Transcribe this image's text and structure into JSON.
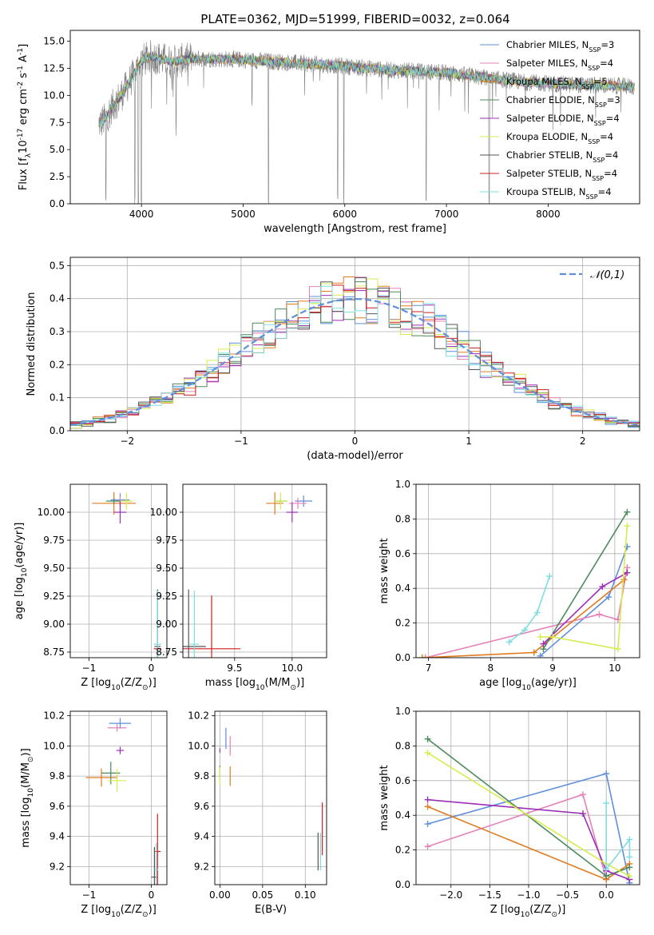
{
  "title": "PLATE=0362, MJD=51999, FIBERID=0032, z=0.064",
  "models": [
    {
      "name": "Chabrier MILES, N$_{SSP}$=3",
      "color": "#5f8edb"
    },
    {
      "name": "Salpeter MILES, N$_{SSP}$=4",
      "color": "#e581b9"
    },
    {
      "name": "Kroupa MILES, N$_{SSP}$=5",
      "color": "#e07b1e"
    },
    {
      "name": "Chabrier ELODIE, N$_{SSP}$=3",
      "color": "#4c8a5c"
    },
    {
      "name": "Salpeter ELODIE, N$_{SSP}$=4",
      "color": "#9a2fb8"
    },
    {
      "name": "Kroupa ELODIE, N$_{SSP}$=4",
      "color": "#d6ec4d"
    },
    {
      "name": "Chabrier STELIB, N$_{SSP}$=4",
      "color": "#555555"
    },
    {
      "name": "Salpeter STELIB, N$_{SSP}$=4",
      "color": "#cc1f1f"
    },
    {
      "name": "Kroupa STELIB, N$_{SSP}$=4",
      "color": "#7fdde0"
    }
  ],
  "chart_data": [
    {
      "id": "spectrum",
      "type": "line",
      "xlabel": "wavelength [Angstrom, rest frame]",
      "ylabel": "Flux [f$_\\lambda$10$^{-17}$ erg cm$^{-2}$ s$^{-1}$ A$^{-1}$]",
      "xlim": [
        3300,
        8900
      ],
      "ylim": [
        0,
        16
      ],
      "xticks": [
        4000,
        5000,
        6000,
        7000,
        8000
      ],
      "yticks": [
        0.0,
        2.5,
        5.0,
        7.5,
        10.0,
        12.5,
        15.0
      ],
      "data_color": "#808080",
      "continuum": {
        "x": [
          3580,
          3650,
          3700,
          3800,
          3900,
          4000,
          4100,
          4300,
          4500,
          5000,
          5500,
          6000,
          6500,
          7000,
          7400,
          7800,
          8200,
          8600,
          8850
        ],
        "y": [
          7.4,
          7.8,
          8.8,
          10.0,
          11.5,
          13.2,
          13.6,
          13.1,
          13.4,
          13.3,
          13.0,
          12.7,
          12.3,
          12.1,
          11.6,
          11.2,
          11.0,
          10.9,
          10.8
        ]
      },
      "dips": [
        {
          "x": 3650,
          "y": 0
        },
        {
          "x": 3935,
          "y": 0
        },
        {
          "x": 3970,
          "y": 0
        },
        {
          "x": 4000,
          "y": 0
        },
        {
          "x": 4340,
          "y": 6.5
        },
        {
          "x": 5250,
          "y": 0
        },
        {
          "x": 5930,
          "y": 0
        },
        {
          "x": 5990,
          "y": 0
        },
        {
          "x": 6800,
          "y": 0
        },
        {
          "x": 7420,
          "y": 0
        }
      ],
      "legend": "upper right"
    },
    {
      "id": "residuals",
      "type": "line",
      "xlabel": "(data-model)/error",
      "ylabel": "Normed distribution",
      "xlim": [
        -2.5,
        2.5
      ],
      "ylim": [
        0,
        0.525
      ],
      "xticks": [
        -2,
        -1,
        0,
        1,
        2
      ],
      "yticks": [
        0.0,
        0.1,
        0.2,
        0.3,
        0.4,
        0.5
      ],
      "gaussian_label": "$\\mathcal{N}(0,1)$",
      "gaussian_color": "#5f8edb",
      "bin_width": 0.1,
      "legend": "upper right",
      "grid": true
    },
    {
      "id": "age-vs-Z",
      "type": "scatter",
      "xlabel": "Z [log$_{10}$($Z/Z_\\odot$)]",
      "ylabel": "age  [log$_{10}$($age/yr$)]",
      "xlim": [
        -1.3,
        0.25
      ],
      "ylim": [
        8.7,
        10.25
      ],
      "xticks": [
        -1,
        0
      ],
      "yticks": [
        8.75,
        9.0,
        9.25,
        9.5,
        9.75,
        10.0
      ],
      "points": [
        {
          "m": 0,
          "x": -0.5,
          "y": 10.11,
          "xerr": 0.3,
          "yerr": 0.12
        },
        {
          "m": 1,
          "x": -0.5,
          "y": 10.1,
          "xerr": 0.25,
          "yerr": 0.08
        },
        {
          "m": 2,
          "x": -0.6,
          "y": 10.08,
          "xerr": 0.7,
          "yerr": 0.2
        },
        {
          "m": 3,
          "x": -0.6,
          "y": 10.1,
          "xerr": 0.25,
          "yerr": 0.05
        },
        {
          "m": 4,
          "x": -0.5,
          "y": 10.0,
          "xerr": 0.2,
          "yerr": 0.2
        },
        {
          "m": 5,
          "x": -0.4,
          "y": 10.1,
          "xerr": 0.2,
          "yerr": 0.15
        },
        {
          "m": 6,
          "x": 0.1,
          "y": 8.8,
          "xerr": 0.1,
          "yerr": 1.02
        },
        {
          "m": 7,
          "x": 0.1,
          "y": 8.78,
          "xerr": 0.12,
          "yerr": 0.05
        },
        {
          "m": 8,
          "x": 0.1,
          "y": 8.82,
          "xerr": 0.12,
          "yerr": 0.96
        }
      ]
    },
    {
      "id": "age-vs-mass",
      "type": "scatter",
      "xlabel": "mass [log$_{10}$($M/M_\\odot$)]",
      "ylabel": "",
      "xlim": [
        9.05,
        10.3
      ],
      "ylim": [
        8.7,
        10.25
      ],
      "xticks": [
        9.5,
        10.0
      ],
      "yticks": [
        8.75,
        9.0,
        9.25,
        9.5,
        9.75,
        10.0
      ],
      "points": [
        {
          "m": 0,
          "x": 10.1,
          "y": 10.1,
          "xerr": 0.15,
          "yerr": 0.1
        },
        {
          "m": 1,
          "x": 10.05,
          "y": 10.08,
          "xerr": 0.15,
          "yerr": 0.1
        },
        {
          "m": 2,
          "x": 9.85,
          "y": 10.08,
          "xerr": 0.15,
          "yerr": 0.2
        },
        {
          "m": 3,
          "x": 9.9,
          "y": 10.1,
          "xerr": 0.12,
          "yerr": 0.05
        },
        {
          "m": 4,
          "x": 10.0,
          "y": 10.0,
          "xerr": 0.1,
          "yerr": 0.18
        },
        {
          "m": 5,
          "x": 9.9,
          "y": 10.1,
          "xerr": 0.12,
          "yerr": 0.15
        },
        {
          "m": 6,
          "x": 9.1,
          "y": 8.8,
          "xerr": 0.3,
          "yerr": 1.02
        },
        {
          "m": 7,
          "x": 9.3,
          "y": 8.78,
          "xerr": 0.5,
          "yerr": 0.95
        },
        {
          "m": 8,
          "x": 9.15,
          "y": 8.82,
          "xerr": 0.08,
          "yerr": 0.96
        }
      ]
    },
    {
      "id": "weight-vs-age",
      "type": "line",
      "xlabel": "age  [log$_{10}$($age/yr$)]",
      "ylabel": "mass weight",
      "xlim": [
        6.8,
        10.4
      ],
      "ylim": [
        0,
        1.0
      ],
      "xticks": [
        7,
        8,
        9,
        10
      ],
      "yticks": [
        0.0,
        0.2,
        0.4,
        0.6,
        0.8,
        1.0
      ],
      "grid": true,
      "series": [
        {
          "m": 0,
          "x": [
            8.8,
            9.9,
            10.2
          ],
          "y": [
            0.01,
            0.35,
            0.64
          ]
        },
        {
          "m": 1,
          "x": [
            6.95,
            9.75,
            10.05,
            10.2
          ],
          "y": [
            0.0,
            0.25,
            0.22,
            0.52
          ]
        },
        {
          "m": 2,
          "x": [
            6.9,
            8.7,
            10.15
          ],
          "y": [
            0.0,
            0.03,
            0.45
          ]
        },
        {
          "m": 3,
          "x": [
            8.85,
            10.2
          ],
          "y": [
            0.05,
            0.84
          ]
        },
        {
          "m": 4,
          "x": [
            8.85,
            9.8,
            10.2
          ],
          "y": [
            0.08,
            0.41,
            0.49
          ]
        },
        {
          "m": 5,
          "x": [
            8.8,
            9.0,
            10.05,
            10.2
          ],
          "y": [
            0.12,
            0.12,
            0.05,
            0.76
          ]
        },
        {
          "m": 8,
          "x": [
            8.3,
            8.55,
            8.75,
            8.95
          ],
          "y": [
            0.09,
            0.16,
            0.26,
            0.47
          ]
        }
      ]
    },
    {
      "id": "mass-vs-Z",
      "type": "scatter",
      "xlabel": "Z [log$_{10}$($Z/Z_\\odot$)]",
      "ylabel": "mass [log$_{10}$($M/M_\\odot$)]",
      "xlim": [
        -1.3,
        0.25
      ],
      "ylim": [
        9.08,
        10.23
      ],
      "xticks": [
        -1,
        0
      ],
      "yticks": [
        9.2,
        9.4,
        9.6,
        9.8,
        10.0,
        10.2
      ],
      "points": [
        {
          "m": 0,
          "x": -0.5,
          "y": 10.15,
          "xerr": 0.35,
          "yerr": 0.07
        },
        {
          "m": 1,
          "x": -0.55,
          "y": 10.12,
          "xerr": 0.3,
          "yerr": 0.05
        },
        {
          "m": 2,
          "x": -0.8,
          "y": 9.79,
          "xerr": 0.5,
          "yerr": 0.12
        },
        {
          "m": 3,
          "x": -0.65,
          "y": 9.82,
          "xerr": 0.3,
          "yerr": 0.15
        },
        {
          "m": 4,
          "x": -0.5,
          "y": 9.97,
          "xerr": 0.12,
          "yerr": 0.05
        },
        {
          "m": 5,
          "x": -0.55,
          "y": 9.77,
          "xerr": 0.3,
          "yerr": 0.15
        },
        {
          "m": 6,
          "x": 0.05,
          "y": 9.13,
          "xerr": 0.1,
          "yerr": 0.4
        },
        {
          "m": 7,
          "x": 0.1,
          "y": 9.3,
          "xerr": 0.1,
          "yerr": 0.5
        },
        {
          "m": 8,
          "x": 0.08,
          "y": 9.18,
          "xerr": 0.06,
          "yerr": 0.35
        }
      ]
    },
    {
      "id": "mass-vs-ebv",
      "type": "scatter",
      "xlabel": "E(B-V)",
      "ylabel": "",
      "xlim": [
        -0.006,
        0.125
      ],
      "ylim": [
        9.08,
        10.23
      ],
      "xticks": [
        0.0,
        0.05,
        0.1
      ],
      "yticks": [
        9.2,
        9.4,
        9.6,
        9.8,
        10.0,
        10.2
      ],
      "points": [
        {
          "m": 0,
          "x": 0.007,
          "y": 10.05,
          "xerr": 0,
          "yerr": 0.14
        },
        {
          "m": 1,
          "x": 0.012,
          "y": 10.0,
          "xerr": 0,
          "yerr": 0.13
        },
        {
          "m": 2,
          "x": 0.012,
          "y": 9.8,
          "xerr": 0,
          "yerr": 0.13
        },
        {
          "m": 3,
          "x": 0.0,
          "y": 9.82,
          "xerr": 0,
          "yerr": 0.1
        },
        {
          "m": 4,
          "x": 0.0,
          "y": 9.97,
          "xerr": 0,
          "yerr": 0.03
        },
        {
          "m": 5,
          "x": 0.0,
          "y": 9.8,
          "xerr": 0,
          "yerr": 0.12
        },
        {
          "m": 6,
          "x": 0.115,
          "y": 9.3,
          "xerr": 0,
          "yerr": 0.25
        },
        {
          "m": 7,
          "x": 0.12,
          "y": 9.45,
          "xerr": 0,
          "yerr": 0.35
        },
        {
          "m": 8,
          "x": 0.118,
          "y": 9.3,
          "xerr": 0,
          "yerr": 0.25
        }
      ]
    },
    {
      "id": "weight-vs-Z",
      "type": "line",
      "xlabel": "Z [log$_{10}$($Z/Z_\\odot$)]",
      "ylabel": "mass weight",
      "xlim": [
        -2.45,
        0.43
      ],
      "ylim": [
        0,
        1.0
      ],
      "xticks": [
        -2.0,
        -1.5,
        -1.0,
        -0.5,
        0.0
      ],
      "yticks": [
        0.0,
        0.2,
        0.4,
        0.6,
        0.8,
        1.0
      ],
      "grid": true,
      "series": [
        {
          "m": 0,
          "x": [
            -2.3,
            0.0,
            0.3
          ],
          "y": [
            0.35,
            0.64,
            0.01
          ]
        },
        {
          "m": 1,
          "x": [
            -2.3,
            -0.3,
            0.0
          ],
          "y": [
            0.22,
            0.52,
            0.03
          ]
        },
        {
          "m": 2,
          "x": [
            -2.3,
            0.0,
            0.3
          ],
          "y": [
            0.45,
            0.03,
            0.12
          ]
        },
        {
          "m": 3,
          "x": [
            -2.3,
            0.0,
            0.3
          ],
          "y": [
            0.84,
            0.05,
            0.1
          ]
        },
        {
          "m": 4,
          "x": [
            -2.3,
            -0.3,
            0.0,
            0.3
          ],
          "y": [
            0.49,
            0.41,
            0.08,
            0.03
          ]
        },
        {
          "m": 5,
          "x": [
            -2.3,
            0.0,
            0.3
          ],
          "y": [
            0.76,
            0.12,
            0.05
          ]
        },
        {
          "m": 8,
          "x": [
            0.0,
            0.0,
            0.3,
            0.3
          ],
          "y": [
            0.47,
            0.09,
            0.26,
            0.16
          ]
        }
      ]
    }
  ]
}
